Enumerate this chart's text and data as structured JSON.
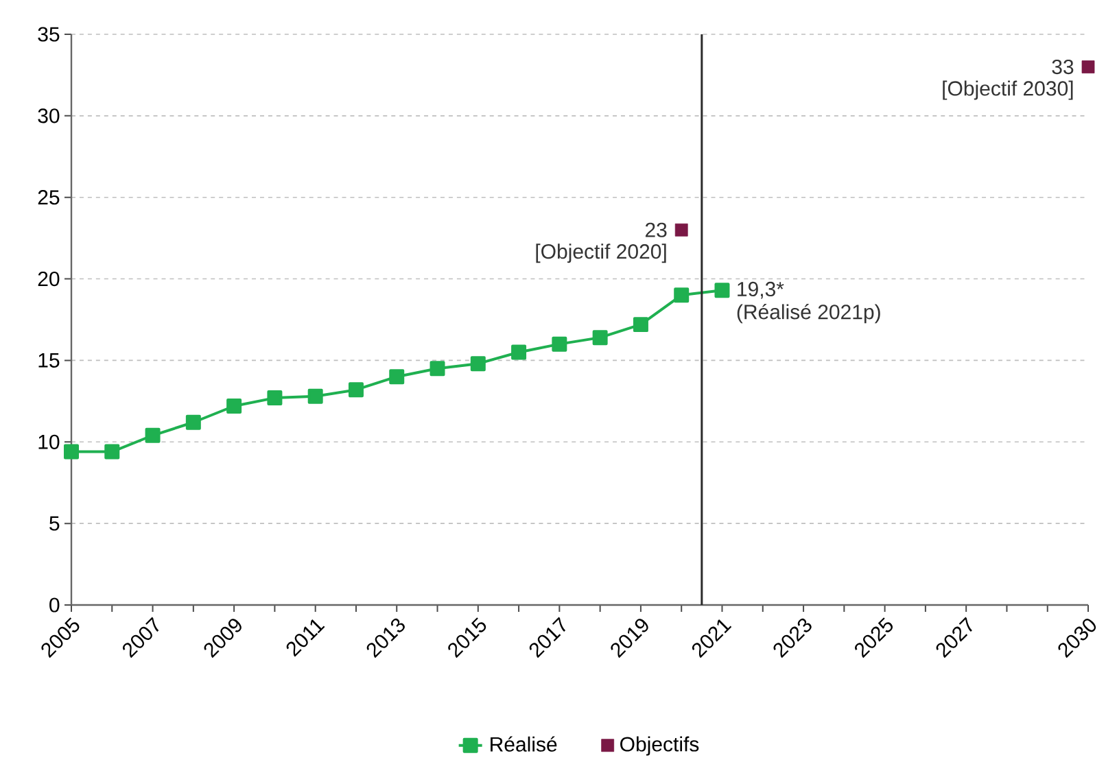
{
  "chart_data": {
    "type": "line",
    "series": [
      {
        "name": "Réalisé",
        "color": "#1fb050",
        "marker": "square",
        "x": [
          2005,
          2006,
          2007,
          2008,
          2009,
          2010,
          2011,
          2012,
          2013,
          2014,
          2015,
          2016,
          2017,
          2018,
          2019,
          2020,
          2021
        ],
        "values": [
          9.4,
          9.4,
          10.4,
          11.2,
          12.2,
          12.7,
          12.8,
          13.2,
          14.0,
          14.5,
          14.8,
          15.5,
          16.0,
          16.4,
          17.2,
          19.0,
          19.3
        ]
      },
      {
        "name": "Objectifs",
        "type": "scatter",
        "color": "#7a1845",
        "marker": "square",
        "x": [
          2020,
          2030
        ],
        "values": [
          23,
          33
        ]
      }
    ],
    "xlim": [
      2005,
      2030
    ],
    "xticks": [
      2005,
      {
        "value": 2006,
        "label": null
      },
      2007,
      {
        "value": 2008,
        "label": null
      },
      2009,
      {
        "value": 2010,
        "label": null
      },
      2011,
      {
        "value": 2012,
        "label": null
      },
      2013,
      {
        "value": 2014,
        "label": null
      },
      2015,
      {
        "value": 2016,
        "label": null
      },
      2017,
      {
        "value": 2018,
        "label": null
      },
      2019,
      {
        "value": 2020,
        "label": null
      },
      2021,
      {
        "value": 2022,
        "label": null
      },
      2023,
      {
        "value": 2024,
        "label": null
      },
      2025,
      {
        "value": 2026,
        "label": null
      },
      2027,
      {
        "value": 2028,
        "label": null
      },
      {
        "value": 2029,
        "label": null
      },
      2030
    ],
    "ylim": [
      0,
      35
    ],
    "yticks": [
      0,
      5,
      10,
      15,
      20,
      25,
      30,
      35
    ],
    "grid": "y",
    "legend": "bottom",
    "ref_lines": [
      {
        "axis": "x",
        "value": 2020.5,
        "color": "#2b2b2b"
      }
    ],
    "annotations": [
      {
        "text": "19,3*",
        "x": 2021,
        "y": 19.3
      },
      {
        "text": "(Réalisé 2021p)",
        "x": 2021,
        "y": 19.3
      },
      {
        "text": "23",
        "x": 2020,
        "y": 23
      },
      {
        "text": "[Objectif 2020]",
        "x": 2020,
        "y": 23
      },
      {
        "text": "33",
        "x": 2030,
        "y": 33
      },
      {
        "text": "[Objectif 2030]",
        "x": 2030,
        "y": 33
      }
    ]
  }
}
